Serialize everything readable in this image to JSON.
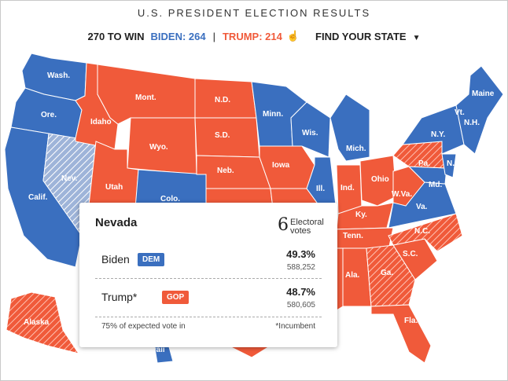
{
  "header": {
    "title": "U.S. PRESIDENT ELECTION RESULTS",
    "to_win": "270 TO WIN",
    "biden_total": "BIDEN: 264",
    "separator": "|",
    "trump_total": "TRUMP: 214",
    "find_state": "FIND YOUR STATE"
  },
  "colors": {
    "dem": "#3a6fbf",
    "gop": "#f05a3a",
    "pending": "#9eb4d9"
  },
  "map": {
    "labels": {
      "wa": "Wash.",
      "or": "Ore.",
      "ca": "Calif.",
      "nv": "Nev.",
      "id": "Idaho",
      "mt": "Mont.",
      "wy": "Wyo.",
      "ut": "Utah",
      "co": "Colo.",
      "nd": "N.D.",
      "sd": "S.D.",
      "ne": "Neb.",
      "mn": "Minn.",
      "ia": "Iowa",
      "wi": "Wis.",
      "mi": "Mich.",
      "il": "Ill.",
      "in": "Ind.",
      "oh": "Ohio",
      "pa": "Pa.",
      "ny": "N.Y.",
      "vt": "Vt.",
      "nh": "N.H.",
      "me": "Maine",
      "nj": "N.J.",
      "md": "Md.",
      "wv": "W.Va.",
      "va": "Va.",
      "ky": "Ky.",
      "tn": "Tenn.",
      "nc": "N.C.",
      "sc": "S.C.",
      "ga": "Ga.",
      "al": "Ala.",
      "fl": "Fla.",
      "ak": "Alaska",
      "hi": "Hawaii"
    }
  },
  "tooltip": {
    "state": "Nevada",
    "electoral_votes": "6",
    "electoral_label": "Electoral votes",
    "candidates": [
      {
        "name": "Biden",
        "party": "DEM",
        "pct": "49.3%",
        "votes": "588,252"
      },
      {
        "name": "Trump*",
        "party": "GOP",
        "pct": "48.7%",
        "votes": "580,605"
      }
    ],
    "expected": "75% of expected vote in",
    "incumbent_note": "*Incumbent"
  }
}
